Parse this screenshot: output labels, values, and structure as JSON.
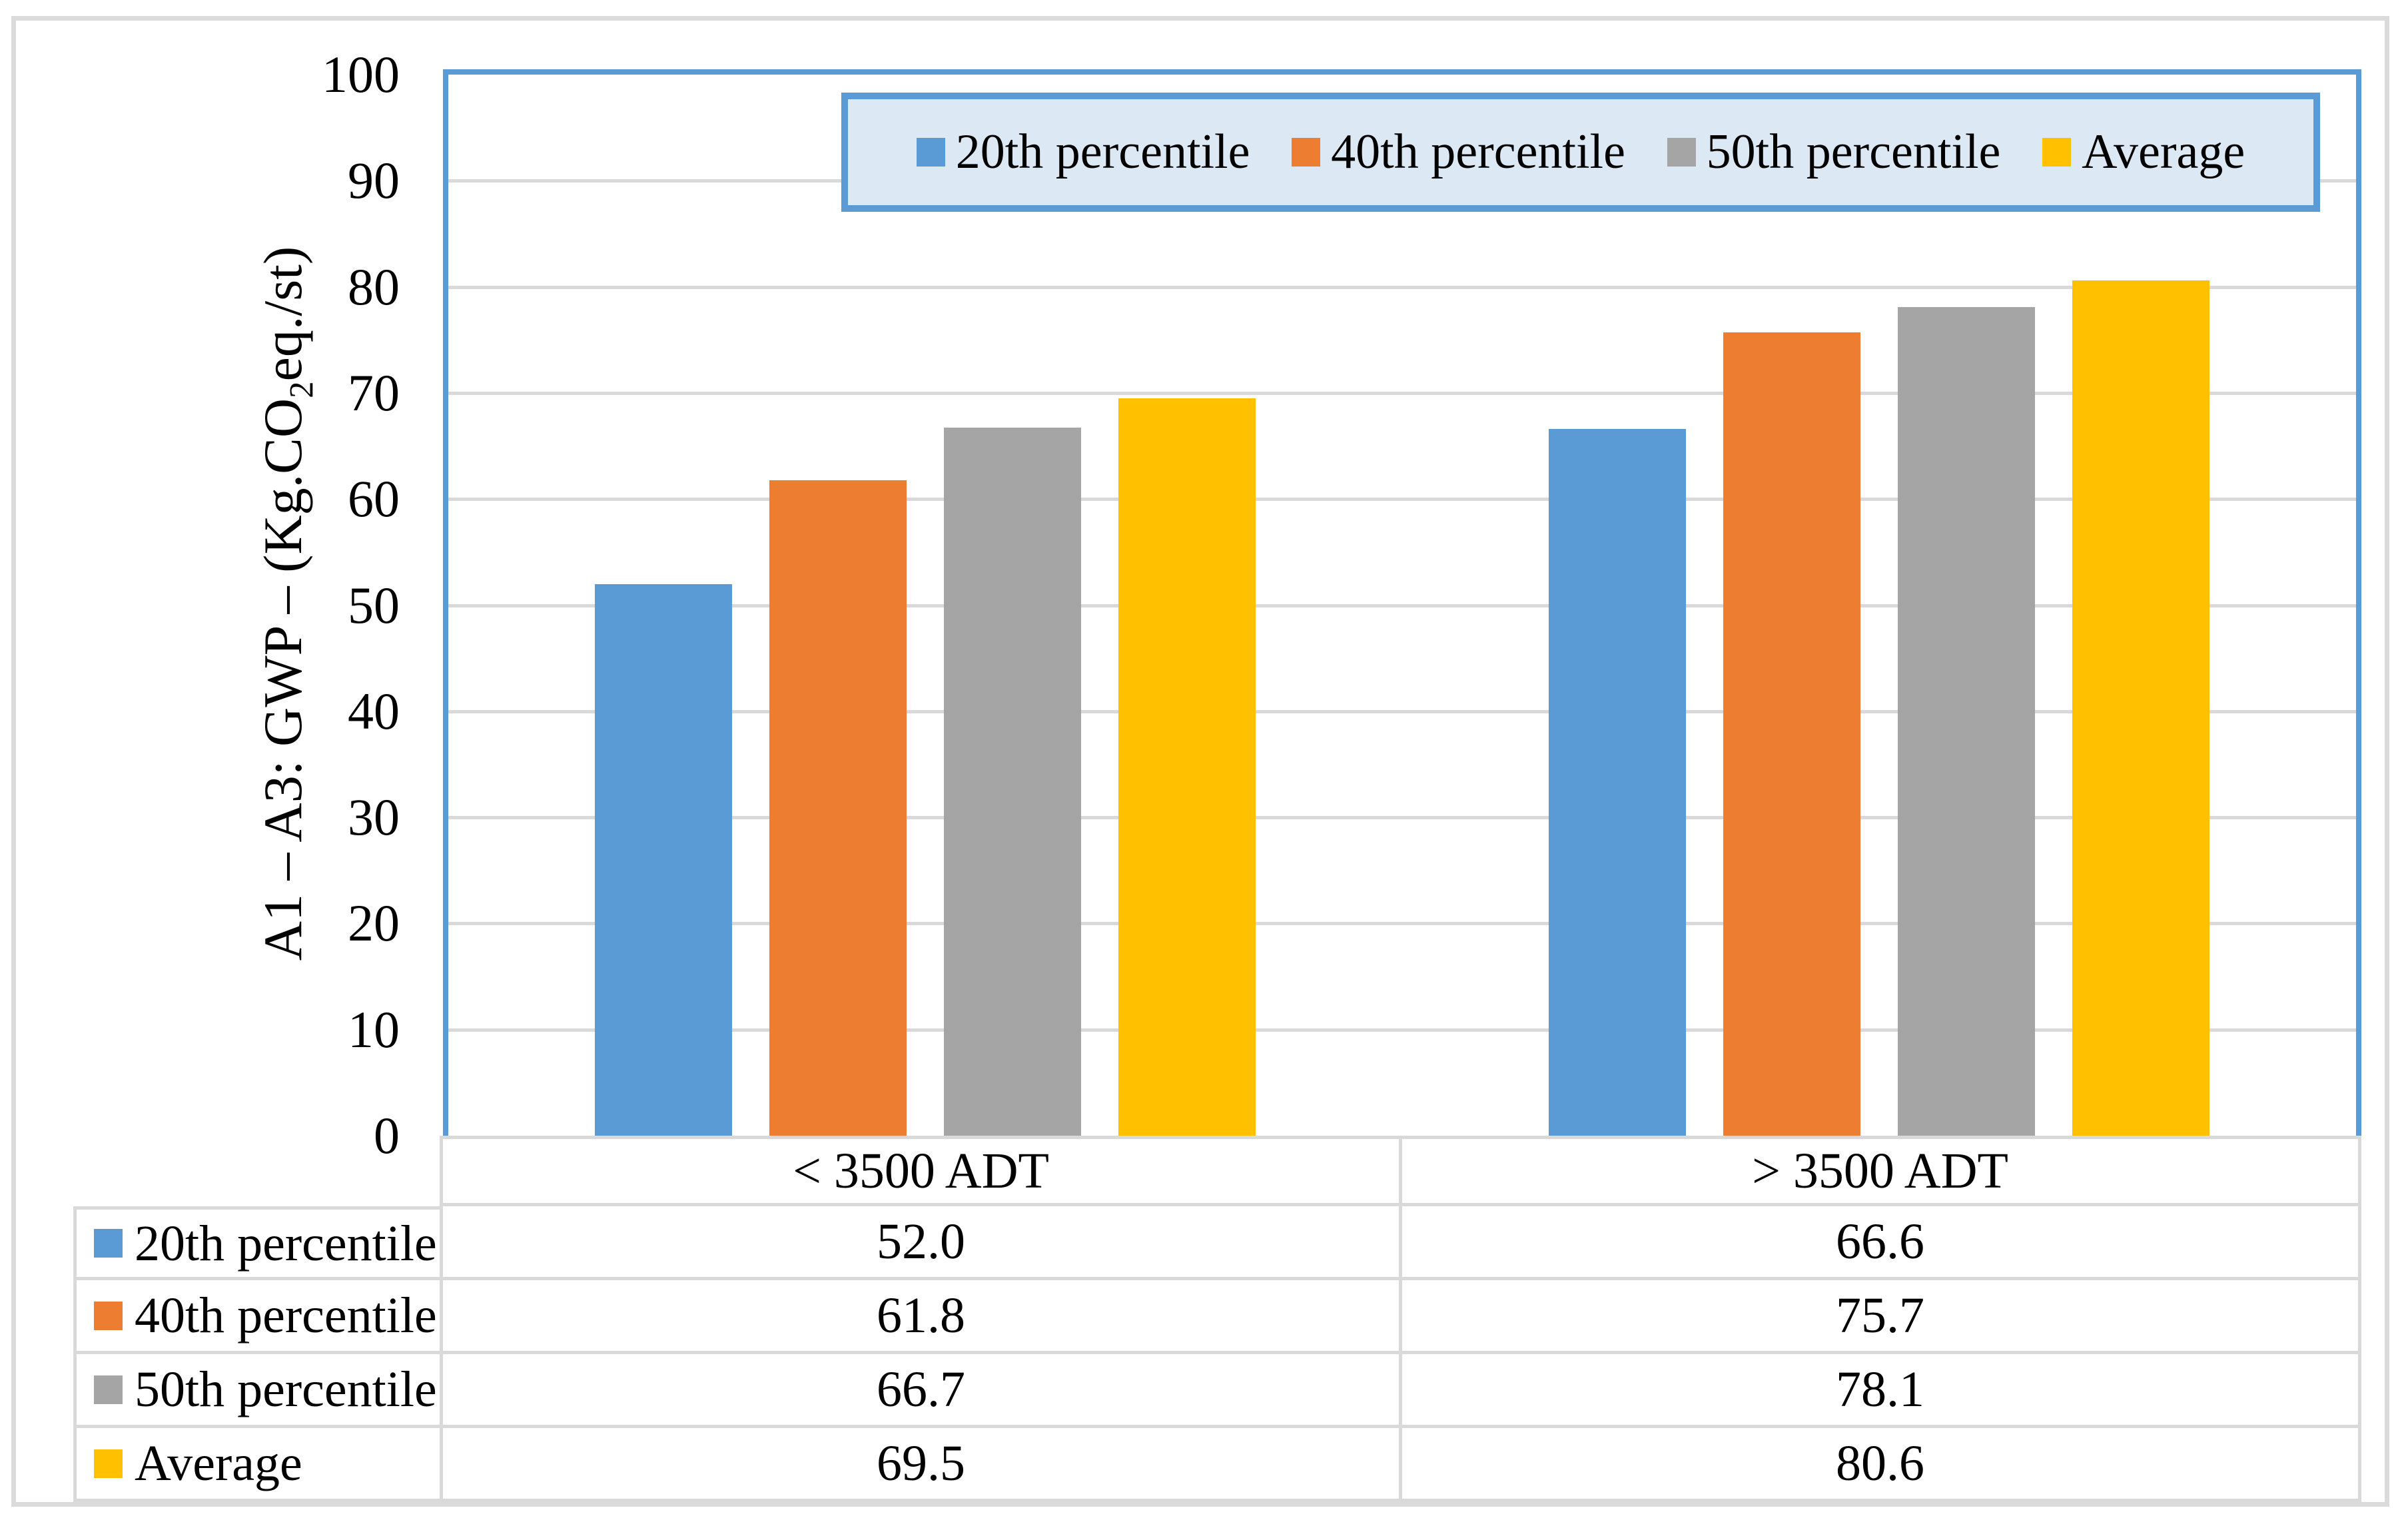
{
  "chart_data": {
    "type": "bar",
    "title": "",
    "xlabel": "",
    "ylabel": "A1 – A3: GWP – (Kg.CO2eq./st)",
    "ylabel_parts": {
      "pre": "A1 – A3: GWP – (Kg.CO",
      "sub": "2",
      "post": "eq./st)"
    },
    "ylim": [
      0,
      100
    ],
    "yticks": [
      0,
      10,
      20,
      30,
      40,
      50,
      60,
      70,
      80,
      90,
      100
    ],
    "grid": true,
    "legend_position": "top-inside",
    "categories": [
      "< 3500 ADT",
      "> 3500 ADT"
    ],
    "series": [
      {
        "name": "20th percentile",
        "color": "#5B9BD5",
        "values": [
          52.0,
          66.6
        ],
        "labels": [
          "52.0",
          "66.6"
        ]
      },
      {
        "name": "40th percentile",
        "color": "#ED7D31",
        "values": [
          61.8,
          75.7
        ],
        "labels": [
          "61.8",
          "75.7"
        ]
      },
      {
        "name": "50th percentile",
        "color": "#A5A5A5",
        "values": [
          66.7,
          78.1
        ],
        "labels": [
          "66.7",
          "78.1"
        ]
      },
      {
        "name": "Average",
        "color": "#FFC000",
        "values": [
          69.5,
          80.6
        ],
        "labels": [
          "69.5",
          "80.6"
        ]
      }
    ],
    "colors": {
      "plot_border": "#5B9BD5",
      "gridline": "#D9D9D9",
      "legend_fill": "#DDE8F5",
      "legend_border": "#5B9BD5",
      "table_border": "#D9D9D9",
      "figure_border": "#DBDBDB"
    }
  }
}
